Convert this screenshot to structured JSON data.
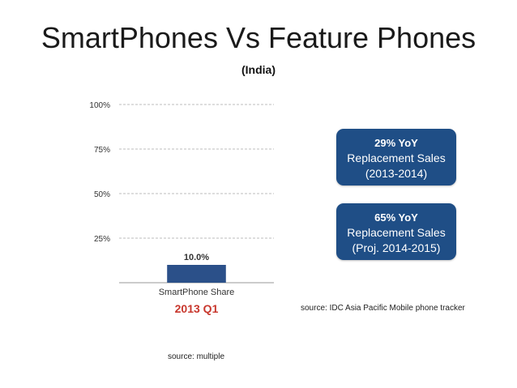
{
  "title": "SmartPhones Vs Feature Phones",
  "subtitle": "(India)",
  "chart_data": {
    "type": "bar",
    "title": "SmartPhones Vs Feature Phones",
    "subtitle": "(India)",
    "categories": [
      "SmartPhone Share"
    ],
    "values": [
      10.0
    ],
    "data_labels": [
      "10.0%"
    ],
    "y_ticks": [
      "25%",
      "50%",
      "75%",
      "100%"
    ],
    "ylim": [
      0,
      100
    ],
    "xlabel": "",
    "ylabel": "",
    "period_label": "2013 Q1",
    "grid": true,
    "bar_color": "#2b5089",
    "period_color": "#c8372d"
  },
  "callouts": [
    {
      "headline": "29% YoY",
      "line1": "Replacement Sales",
      "line2": "(2013-2014)"
    },
    {
      "headline": "65% YoY",
      "line1": "Replacement Sales",
      "line2": "(Proj. 2014-2015)"
    }
  ],
  "sources": {
    "right": "source: IDC Asia Pacific Mobile phone tracker",
    "bottom": "source: multiple"
  }
}
